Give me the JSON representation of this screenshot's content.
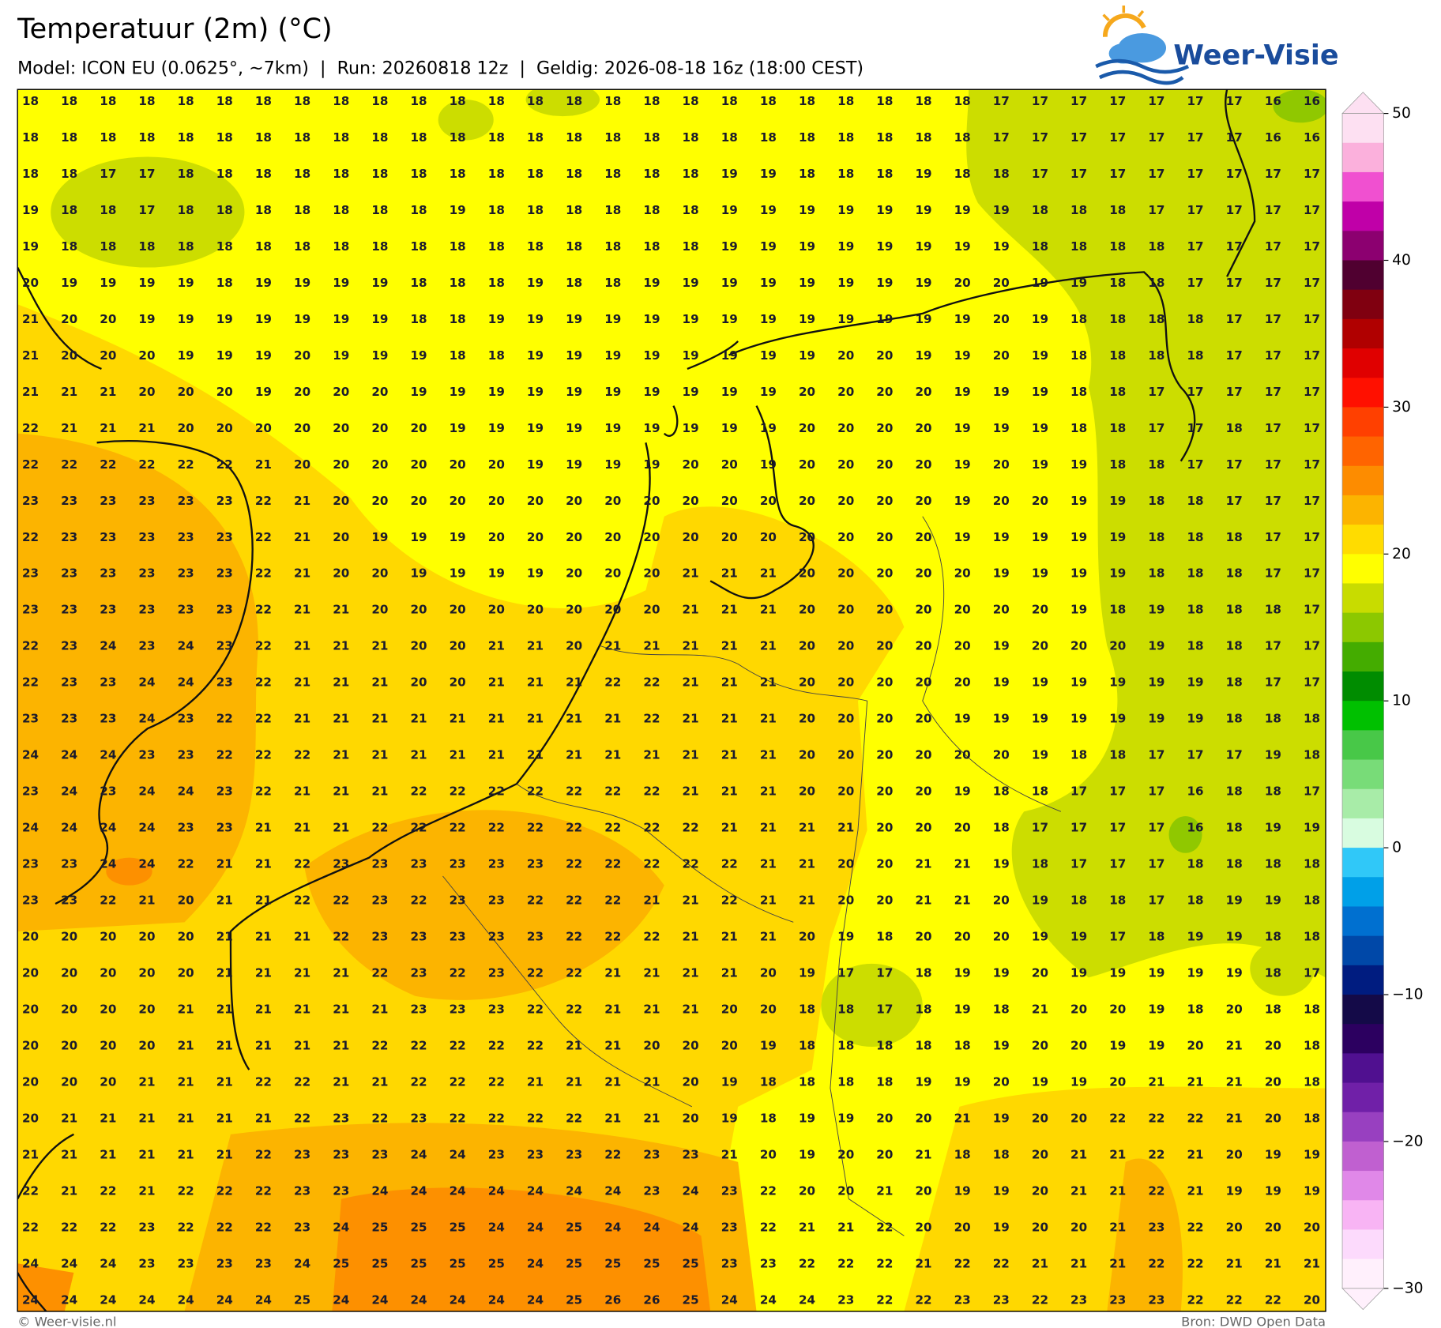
{
  "header": {
    "title": "Temperatuur (2m) (°C)",
    "subtitle": "Model: ICON EU (0.0625°, ~7km)  |  Run: 20260818 12z  |  Geldig: 2026-08-18 16z (18:00 CEST)",
    "logo": "Weer-Visie"
  },
  "grid": {
    "rows": [
      [
        18,
        18,
        18,
        18,
        18,
        18,
        18,
        18,
        18,
        18,
        18,
        18,
        18,
        18,
        18,
        18,
        18,
        18,
        18,
        18,
        18,
        18,
        18,
        18,
        18,
        17,
        17,
        17,
        17,
        17,
        17,
        17,
        16,
        16
      ],
      [
        18,
        18,
        18,
        18,
        18,
        18,
        18,
        18,
        18,
        18,
        18,
        18,
        18,
        18,
        18,
        18,
        18,
        18,
        18,
        18,
        18,
        18,
        18,
        18,
        18,
        17,
        17,
        17,
        17,
        17,
        17,
        17,
        16,
        16
      ],
      [
        18,
        18,
        17,
        17,
        18,
        18,
        18,
        18,
        18,
        18,
        18,
        18,
        18,
        18,
        18,
        18,
        18,
        18,
        19,
        19,
        18,
        18,
        18,
        19,
        18,
        18,
        17,
        17,
        17,
        17,
        17,
        17,
        17,
        17
      ],
      [
        19,
        18,
        18,
        17,
        18,
        18,
        18,
        18,
        18,
        18,
        18,
        19,
        18,
        18,
        18,
        18,
        18,
        18,
        19,
        19,
        19,
        19,
        19,
        19,
        19,
        19,
        18,
        18,
        18,
        17,
        17,
        17,
        17,
        17
      ],
      [
        19,
        18,
        18,
        18,
        18,
        18,
        18,
        18,
        18,
        18,
        18,
        18,
        18,
        18,
        18,
        18,
        18,
        18,
        19,
        19,
        19,
        19,
        19,
        19,
        19,
        19,
        18,
        18,
        18,
        18,
        17,
        17,
        17,
        17
      ],
      [
        20,
        19,
        19,
        19,
        19,
        18,
        19,
        19,
        19,
        19,
        18,
        18,
        18,
        19,
        18,
        18,
        19,
        19,
        19,
        19,
        19,
        19,
        19,
        19,
        20,
        20,
        19,
        19,
        18,
        18,
        17,
        17,
        17,
        17
      ],
      [
        21,
        20,
        20,
        19,
        19,
        19,
        19,
        19,
        19,
        19,
        18,
        18,
        19,
        19,
        19,
        19,
        19,
        19,
        19,
        19,
        19,
        19,
        19,
        19,
        19,
        20,
        19,
        18,
        18,
        18,
        18,
        17,
        17,
        17
      ],
      [
        21,
        20,
        20,
        20,
        19,
        19,
        19,
        20,
        19,
        19,
        19,
        18,
        18,
        19,
        19,
        19,
        19,
        19,
        19,
        19,
        19,
        20,
        20,
        19,
        19,
        20,
        19,
        18,
        18,
        18,
        18,
        17,
        17,
        17
      ],
      [
        21,
        21,
        21,
        20,
        20,
        20,
        19,
        20,
        20,
        20,
        19,
        19,
        19,
        19,
        19,
        19,
        19,
        19,
        19,
        19,
        20,
        20,
        20,
        20,
        19,
        19,
        19,
        18,
        18,
        17,
        17,
        17,
        17,
        17
      ],
      [
        22,
        21,
        21,
        21,
        20,
        20,
        20,
        20,
        20,
        20,
        20,
        19,
        19,
        19,
        19,
        19,
        19,
        19,
        19,
        19,
        20,
        20,
        20,
        20,
        19,
        19,
        19,
        18,
        18,
        17,
        17,
        18,
        17,
        17
      ],
      [
        22,
        22,
        22,
        22,
        22,
        22,
        21,
        20,
        20,
        20,
        20,
        20,
        20,
        19,
        19,
        19,
        19,
        20,
        20,
        19,
        20,
        20,
        20,
        20,
        19,
        20,
        19,
        19,
        18,
        18,
        17,
        17,
        17,
        17
      ],
      [
        23,
        23,
        23,
        23,
        23,
        23,
        22,
        21,
        20,
        20,
        20,
        20,
        20,
        20,
        20,
        20,
        20,
        20,
        20,
        20,
        20,
        20,
        20,
        20,
        19,
        20,
        20,
        19,
        19,
        18,
        18,
        17,
        17,
        17
      ],
      [
        22,
        23,
        23,
        23,
        23,
        23,
        22,
        21,
        20,
        19,
        19,
        19,
        20,
        20,
        20,
        20,
        20,
        20,
        20,
        20,
        20,
        20,
        20,
        20,
        19,
        19,
        19,
        19,
        19,
        18,
        18,
        18,
        17,
        17
      ],
      [
        23,
        23,
        23,
        23,
        23,
        23,
        22,
        21,
        20,
        20,
        19,
        19,
        19,
        19,
        20,
        20,
        20,
        21,
        21,
        21,
        20,
        20,
        20,
        20,
        20,
        19,
        19,
        19,
        19,
        18,
        18,
        18,
        17,
        17
      ],
      [
        23,
        23,
        23,
        23,
        23,
        23,
        22,
        21,
        21,
        20,
        20,
        20,
        20,
        20,
        20,
        20,
        20,
        21,
        21,
        21,
        20,
        20,
        20,
        20,
        20,
        20,
        20,
        19,
        18,
        19,
        18,
        18,
        18,
        17
      ],
      [
        22,
        23,
        24,
        23,
        24,
        23,
        22,
        21,
        21,
        21,
        20,
        20,
        21,
        21,
        20,
        21,
        21,
        21,
        21,
        21,
        20,
        20,
        20,
        20,
        20,
        19,
        20,
        20,
        20,
        19,
        18,
        18,
        17,
        17
      ],
      [
        22,
        23,
        23,
        24,
        24,
        23,
        22,
        21,
        21,
        21,
        20,
        20,
        21,
        21,
        21,
        22,
        22,
        21,
        21,
        21,
        20,
        20,
        20,
        20,
        20,
        19,
        19,
        19,
        19,
        19,
        19,
        18,
        17,
        17
      ],
      [
        23,
        23,
        23,
        24,
        23,
        22,
        22,
        21,
        21,
        21,
        21,
        21,
        21,
        21,
        21,
        21,
        22,
        21,
        21,
        21,
        20,
        20,
        20,
        20,
        19,
        19,
        19,
        19,
        19,
        19,
        19,
        18,
        18,
        18
      ],
      [
        24,
        24,
        24,
        23,
        23,
        22,
        22,
        22,
        21,
        21,
        21,
        21,
        21,
        21,
        21,
        21,
        21,
        21,
        21,
        21,
        20,
        20,
        20,
        20,
        20,
        20,
        19,
        18,
        18,
        17,
        17,
        17,
        19,
        18
      ],
      [
        23,
        24,
        23,
        24,
        24,
        23,
        22,
        21,
        21,
        21,
        22,
        22,
        22,
        22,
        22,
        22,
        22,
        21,
        21,
        21,
        20,
        20,
        20,
        20,
        19,
        18,
        18,
        17,
        17,
        17,
        16,
        18,
        18,
        17
      ],
      [
        24,
        24,
        24,
        24,
        23,
        23,
        21,
        21,
        21,
        22,
        22,
        22,
        22,
        22,
        22,
        22,
        22,
        22,
        21,
        21,
        21,
        21,
        20,
        20,
        20,
        18,
        17,
        17,
        17,
        17,
        16,
        18,
        19,
        19
      ],
      [
        23,
        23,
        24,
        24,
        22,
        21,
        21,
        22,
        23,
        23,
        23,
        23,
        23,
        23,
        22,
        22,
        22,
        22,
        22,
        21,
        21,
        20,
        20,
        21,
        21,
        19,
        18,
        17,
        17,
        17,
        18,
        18,
        18,
        18
      ],
      [
        23,
        23,
        22,
        21,
        20,
        21,
        21,
        22,
        22,
        23,
        22,
        23,
        23,
        22,
        22,
        22,
        21,
        21,
        22,
        21,
        21,
        20,
        20,
        21,
        21,
        20,
        19,
        18,
        18,
        17,
        18,
        19,
        19,
        18
      ],
      [
        20,
        20,
        20,
        20,
        20,
        21,
        21,
        21,
        22,
        23,
        23,
        23,
        23,
        23,
        22,
        22,
        22,
        21,
        21,
        21,
        20,
        19,
        18,
        20,
        20,
        20,
        19,
        19,
        17,
        18,
        19,
        19,
        18,
        18
      ],
      [
        20,
        20,
        20,
        20,
        20,
        21,
        21,
        21,
        21,
        22,
        23,
        22,
        23,
        22,
        22,
        21,
        21,
        21,
        21,
        20,
        19,
        17,
        17,
        18,
        19,
        19,
        20,
        19,
        19,
        19,
        19,
        19,
        18,
        17
      ],
      [
        20,
        20,
        20,
        20,
        21,
        21,
        21,
        21,
        21,
        21,
        23,
        23,
        23,
        22,
        22,
        21,
        21,
        21,
        20,
        20,
        18,
        18,
        17,
        18,
        19,
        18,
        21,
        20,
        20,
        19,
        18,
        20,
        18,
        18
      ],
      [
        20,
        20,
        20,
        20,
        21,
        21,
        21,
        21,
        21,
        22,
        22,
        22,
        22,
        22,
        21,
        21,
        20,
        20,
        20,
        19,
        18,
        18,
        18,
        18,
        18,
        19,
        20,
        20,
        19,
        19,
        20,
        21,
        20,
        18
      ],
      [
        20,
        20,
        20,
        21,
        21,
        21,
        22,
        22,
        21,
        21,
        22,
        22,
        22,
        21,
        21,
        21,
        21,
        20,
        19,
        18,
        18,
        18,
        18,
        19,
        19,
        20,
        19,
        19,
        20,
        21,
        21,
        21,
        20,
        18
      ],
      [
        20,
        21,
        21,
        21,
        21,
        21,
        21,
        22,
        23,
        22,
        23,
        22,
        22,
        22,
        22,
        21,
        21,
        20,
        19,
        18,
        19,
        19,
        20,
        20,
        21,
        19,
        20,
        20,
        22,
        22,
        22,
        21,
        20,
        18
      ],
      [
        21,
        21,
        21,
        21,
        21,
        21,
        22,
        23,
        23,
        23,
        24,
        24,
        23,
        23,
        23,
        22,
        23,
        23,
        21,
        20,
        19,
        20,
        20,
        21,
        18,
        18,
        20,
        21,
        21,
        22,
        21,
        20,
        19,
        19
      ],
      [
        22,
        21,
        22,
        21,
        22,
        22,
        22,
        23,
        23,
        24,
        24,
        24,
        24,
        24,
        24,
        24,
        23,
        24,
        23,
        22,
        20,
        20,
        21,
        20,
        19,
        19,
        20,
        21,
        21,
        22,
        21,
        19,
        19,
        19
      ],
      [
        22,
        22,
        22,
        23,
        22,
        22,
        22,
        23,
        24,
        25,
        25,
        25,
        24,
        24,
        25,
        24,
        24,
        24,
        23,
        22,
        21,
        21,
        22,
        20,
        20,
        19,
        20,
        20,
        21,
        23,
        22,
        20,
        20,
        20
      ],
      [
        24,
        24,
        24,
        23,
        23,
        23,
        23,
        24,
        25,
        25,
        25,
        25,
        25,
        24,
        25,
        25,
        25,
        25,
        23,
        23,
        22,
        22,
        22,
        21,
        22,
        22,
        21,
        21,
        21,
        22,
        22,
        21,
        21,
        21
      ],
      [
        24,
        24,
        24,
        24,
        24,
        24,
        24,
        25,
        24,
        24,
        24,
        24,
        24,
        24,
        25,
        26,
        26,
        25,
        24,
        24,
        24,
        23,
        22,
        22,
        23,
        23,
        22,
        23,
        23,
        23,
        22,
        22,
        22,
        20
      ]
    ]
  },
  "colorbar": {
    "lim": [
      -30,
      50
    ],
    "ticks": [
      {
        "value": -30,
        "label": "−30"
      },
      {
        "value": -20,
        "label": "−20"
      },
      {
        "value": -10,
        "label": "−10"
      },
      0,
      10,
      20,
      30,
      40,
      50
    ],
    "colors": [
      "#fde0f2",
      "#fbb0dc",
      "#f050d0",
      "#c000a8",
      "#8c0070",
      "#500030",
      "#800010",
      "#b00000",
      "#e00000",
      "#ff1000",
      "#ff4000",
      "#ff6400",
      "#fd8c00",
      "#fcb400",
      "#ffdc00",
      "#ffff00",
      "#c8dc00",
      "#8cc800",
      "#44ac00",
      "#008c00",
      "#00c000",
      "#48c848",
      "#78dc78",
      "#a8eca8",
      "#d8fce0",
      "#30c8f8",
      "#00a0e8",
      "#0070d0",
      "#0048a8",
      "#001c80",
      "#140a48",
      "#2c0060",
      "#501090",
      "#7020a8",
      "#9840c0",
      "#c060d0",
      "#e088e8",
      "#f8b4f4",
      "#fcdafc",
      "#fff0fc"
    ]
  },
  "footer": {
    "left": "© Weer-visie.nl",
    "right": "Bron: DWD Open Data"
  }
}
